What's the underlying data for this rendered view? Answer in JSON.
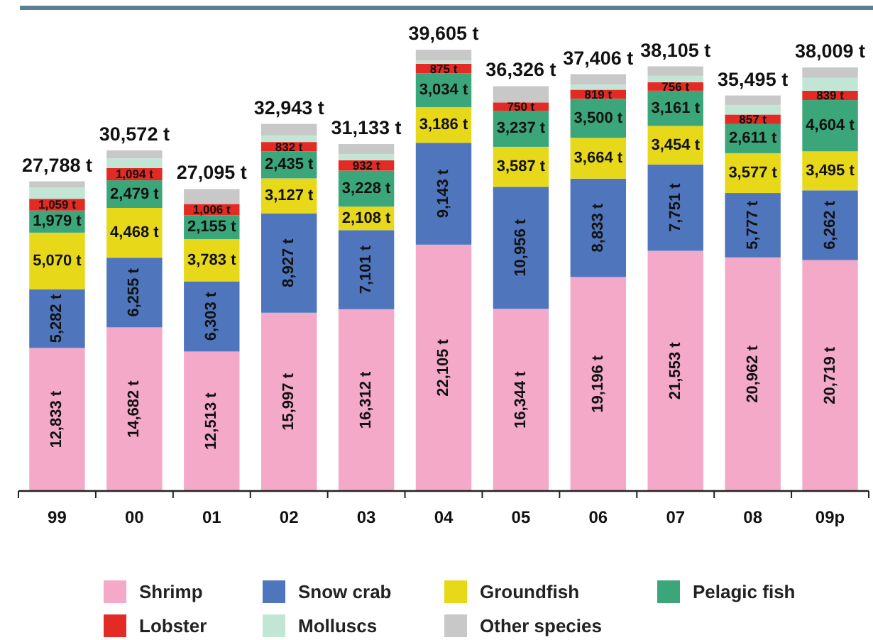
{
  "chart_data": {
    "type": "bar",
    "stacked": true,
    "categories": [
      "99",
      "00",
      "01",
      "02",
      "03",
      "04",
      "05",
      "06",
      "07",
      "08",
      "09p"
    ],
    "series": [
      {
        "name": "Shrimp",
        "color": "#f4a9c9",
        "values": [
          12833,
          14682,
          12513,
          15997,
          16312,
          22105,
          16344,
          19196,
          21553,
          20962,
          20719
        ],
        "value_labels": [
          "12,833 t",
          "14,682 t",
          "12,513 t",
          "15,997 t",
          "16,312 t",
          "22,105 t",
          "16,344 t",
          "19,196 t",
          "21,553 t",
          "20,962 t",
          "20,719 t"
        ]
      },
      {
        "name": "Snow crab",
        "color": "#4f76bd",
        "values": [
          5282,
          6255,
          6303,
          8927,
          7101,
          9143,
          10956,
          8833,
          7751,
          5777,
          6262
        ],
        "value_labels": [
          "5,282 t",
          "6,255 t",
          "6,303 t",
          "8,927 t",
          "7,101 t",
          "9,143 t",
          "10,956 t",
          "8,833 t",
          "7,751 t",
          "5,777 t",
          "6,262 t"
        ]
      },
      {
        "name": "Groundfish",
        "color": "#e8d81a",
        "values": [
          5070,
          4468,
          3783,
          3127,
          2108,
          3186,
          3587,
          3664,
          3454,
          3577,
          3495
        ],
        "value_labels": [
          "5,070 t",
          "4,468 t",
          "3,783 t",
          "3,127 t",
          "2,108 t",
          "3,186 t",
          "3,587 t",
          "3,664 t",
          "3,454 t",
          "3,577 t",
          "3,495 t"
        ]
      },
      {
        "name": "Pelagic fish",
        "color": "#3aa67a",
        "values": [
          1979,
          2479,
          2155,
          2435,
          3228,
          3034,
          3237,
          3500,
          3161,
          2611,
          4604
        ],
        "value_labels": [
          "1,979 t",
          "2,479 t",
          "2,155 t",
          "2,435 t",
          "3,228 t",
          "3,034 t",
          "3,237 t",
          "3,500 t",
          "3,161 t",
          "2,611 t",
          "4,604 t"
        ]
      },
      {
        "name": "Lobster",
        "color": "#e32b26",
        "values": [
          1059,
          1094,
          1006,
          832,
          932,
          875,
          750,
          819,
          756,
          857,
          839
        ],
        "value_labels": [
          "1,059 t",
          "1,094 t",
          "1,006 t",
          "832 t",
          "932 t",
          "875 t",
          "750 t",
          "819 t",
          "756 t",
          "857 t",
          "839 t"
        ]
      },
      {
        "name": "Molluscs",
        "color": "#c2e6d5",
        "values": [
          1000,
          870,
          null,
          565,
          560,
          280,
          null,
          459,
          580,
          861,
          1155
        ]
      },
      {
        "name": "Other species",
        "color": "#c8c8c8",
        "values": [
          565,
          724,
          1335,
          1060,
          892,
          982,
          1452,
          935,
          850,
          850,
          935
        ]
      }
    ],
    "totals": [
      "27,788 t",
      "30,572 t",
      "27,095 t",
      "32,943 t",
      "31,133 t",
      "39,605 t",
      "36,326 t",
      "37,406 t",
      "38,105 t",
      "35,495 t",
      "38,009 t"
    ],
    "legend": "bottom",
    "tick_labels": "x"
  }
}
